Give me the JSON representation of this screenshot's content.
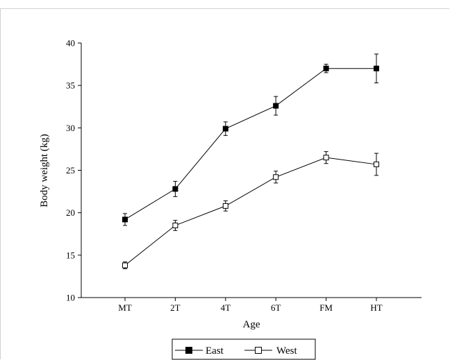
{
  "chart_data": {
    "type": "line",
    "title": "",
    "xlabel": "Age",
    "ylabel": "Body weight (kg)",
    "categories": [
      "MT",
      "2T",
      "4T",
      "6T",
      "FM",
      "HT"
    ],
    "ylim": [
      10,
      40
    ],
    "yticks": [
      10,
      15,
      20,
      25,
      30,
      35,
      40
    ],
    "grid": false,
    "legend_position": "bottom",
    "series": [
      {
        "name": "East",
        "marker": "filled-square",
        "values": [
          19.2,
          22.8,
          29.9,
          32.6,
          37.0,
          37.0
        ],
        "error": [
          0.7,
          0.9,
          0.8,
          1.1,
          0.5,
          1.7
        ]
      },
      {
        "name": "West",
        "marker": "open-square",
        "values": [
          13.8,
          18.5,
          20.8,
          24.2,
          26.5,
          25.7
        ],
        "error": [
          0.4,
          0.6,
          0.6,
          0.7,
          0.7,
          1.3
        ]
      }
    ]
  }
}
